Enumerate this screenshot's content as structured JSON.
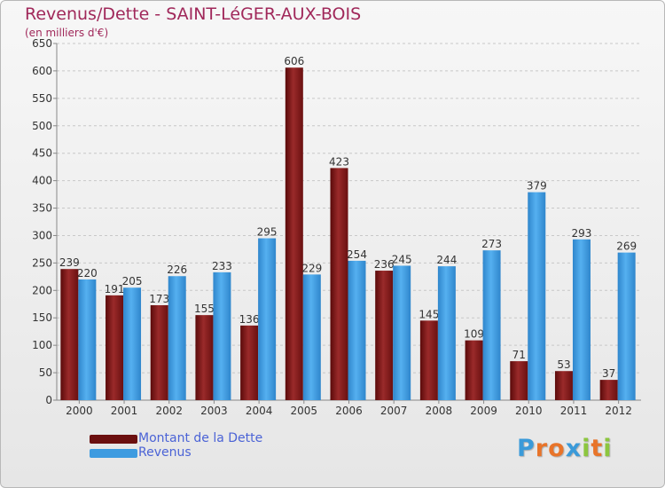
{
  "title": "Revenus/Dette - SAINT-LéGER-AUX-BOIS",
  "subtitle": "(en milliers d'€)",
  "chart_data": {
    "type": "bar",
    "categories": [
      "2000",
      "2001",
      "2002",
      "2003",
      "2004",
      "2005",
      "2006",
      "2007",
      "2008",
      "2009",
      "2010",
      "2011",
      "2012"
    ],
    "series": [
      {
        "name": "Montant de la Dette",
        "color": "#8b1a1a",
        "values": [
          239,
          191,
          173,
          155,
          136,
          606,
          423,
          236,
          145,
          109,
          71,
          53,
          37
        ]
      },
      {
        "name": "Revenus",
        "color": "#3d9be0",
        "values": [
          220,
          205,
          226,
          233,
          295,
          229,
          254,
          245,
          244,
          273,
          379,
          293,
          269
        ]
      }
    ],
    "ylim": [
      0,
      650
    ],
    "yticks": [
      0,
      50,
      100,
      150,
      200,
      250,
      300,
      350,
      400,
      450,
      500,
      550,
      600,
      650
    ],
    "grid": true,
    "legend_position": "bottom-left"
  },
  "legend": [
    {
      "label": "Montant de la Dette",
      "color": "#6b0f0f"
    },
    {
      "label": "Revenus",
      "color": "#3d9be0"
    }
  ],
  "logo": {
    "letters": [
      "P",
      "r",
      "o",
      "x",
      "i",
      "t",
      "i"
    ],
    "colors": [
      "#3a9ad9",
      "#e8742a",
      "#e8742a",
      "#3a9ad9",
      "#8cc63f",
      "#e8742a",
      "#8cc63f"
    ]
  }
}
